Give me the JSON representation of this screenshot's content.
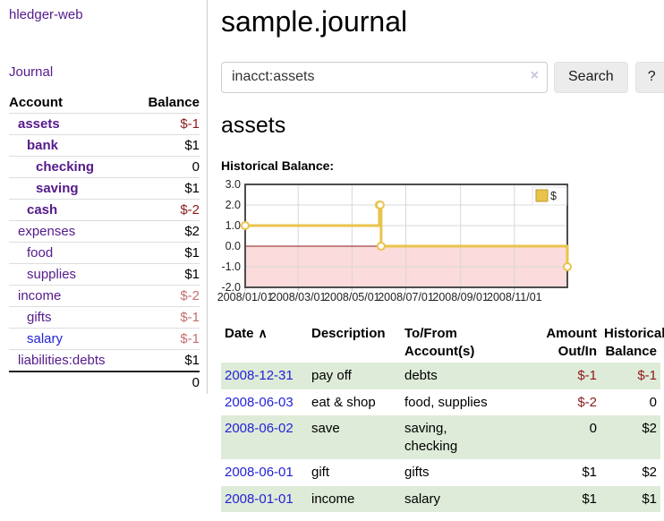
{
  "sidebar": {
    "app_title": "hledger-web",
    "journal_label": "Journal",
    "accounts_table": {
      "account_header": "Account",
      "balance_header": "Balance",
      "rows": [
        {
          "name": "assets",
          "balance": "$-1",
          "depth": 1,
          "bold": true,
          "balance_style": "negative"
        },
        {
          "name": "bank",
          "balance": "$1",
          "depth": 2,
          "bold": true,
          "balance_style": "normal"
        },
        {
          "name": "checking",
          "balance": "0",
          "depth": 3,
          "bold": true,
          "balance_style": "normal"
        },
        {
          "name": "saving",
          "balance": "$1",
          "depth": 3,
          "bold": true,
          "balance_style": "normal"
        },
        {
          "name": "cash",
          "balance": "$-2",
          "depth": 2,
          "bold": true,
          "balance_style": "negative"
        },
        {
          "name": "expenses",
          "balance": "$2",
          "depth": 1,
          "bold": false,
          "balance_style": "normal"
        },
        {
          "name": "food",
          "balance": "$1",
          "depth": 2,
          "bold": false,
          "balance_style": "normal"
        },
        {
          "name": "supplies",
          "balance": "$1",
          "depth": 2,
          "bold": false,
          "balance_style": "normal"
        },
        {
          "name": "income",
          "balance": "$-2",
          "depth": 1,
          "bold": false,
          "balance_style": "negative-dim"
        },
        {
          "name": "gifts",
          "balance": "$-1",
          "depth": 2,
          "bold": false,
          "balance_style": "negative-dim"
        },
        {
          "name": "salary",
          "balance": "$-1",
          "depth": 2,
          "bold": false,
          "balance_style": "negative-dim",
          "link_color": "blue"
        },
        {
          "name": "liabilities:debts",
          "balance": "$1",
          "depth": 1,
          "bold": false,
          "balance_style": "normal"
        }
      ],
      "total": "0"
    }
  },
  "header": {
    "title": "sample.journal"
  },
  "search": {
    "query": "inacct:assets",
    "clear_icon": "×",
    "search_button": "Search",
    "help_button": "?"
  },
  "account_page": {
    "heading": "assets",
    "chart_label": "Historical Balance:"
  },
  "chart_data": {
    "type": "line",
    "step": true,
    "title": "Historical Balance",
    "legend": [
      {
        "label": "$",
        "color": "#e9c34c"
      }
    ],
    "legend_position": "top-right",
    "series": [
      {
        "name": "$",
        "points": [
          [
            "2008-01-01",
            1.0
          ],
          [
            "2008-06-01",
            2.0
          ],
          [
            "2008-06-02",
            2.0
          ],
          [
            "2008-06-03",
            0.0
          ],
          [
            "2008-12-31",
            -1.0
          ]
        ]
      }
    ],
    "ylim": [
      -2.0,
      3.0
    ],
    "yticks": [
      "3.0",
      "2.0",
      "1.0",
      "0.0",
      "-1.0",
      "-2.0"
    ],
    "ytick_values": [
      3.0,
      2.0,
      1.0,
      0.0,
      -1.0,
      -2.0
    ],
    "xticks": [
      "2008/01/01",
      "2008/03/01",
      "2008/05/01",
      "2008/07/01",
      "2008/09/01",
      "2008/11/01"
    ],
    "xtick_day_index": [
      0,
      60,
      121,
      182,
      244,
      305
    ],
    "x_range_days": 365,
    "grid": true,
    "line_color": "#e9c34c",
    "grid_color": "#d8d8d8",
    "border_color": "#4d4d4d",
    "negative_region_color": "#fbdbdb",
    "zero_line_color": "#8b1a1a"
  },
  "register_table": {
    "headers": {
      "date": "Date",
      "date_sort_icon": "∧",
      "description": "Description",
      "to_from": "To/From\nAccount(s)",
      "amount": "Amount\nOut/In",
      "balance": "Historical\nBalance"
    },
    "rows": [
      {
        "date": "2008-12-31",
        "description": "pay off",
        "to_from": "debts",
        "amount": "$-1",
        "amount_neg": true,
        "balance": "$-1",
        "balance_neg": true,
        "shaded": true
      },
      {
        "date": "2008-06-03",
        "description": "eat & shop",
        "to_from": "food, supplies",
        "amount": "$-2",
        "amount_neg": true,
        "balance": "0",
        "balance_neg": false,
        "shaded": false
      },
      {
        "date": "2008-06-02",
        "description": "save",
        "to_from": "saving,\nchecking",
        "amount": "0",
        "amount_neg": false,
        "balance": "$2",
        "balance_neg": false,
        "shaded": true
      },
      {
        "date": "2008-06-01",
        "description": "gift",
        "to_from": "gifts",
        "amount": "$1",
        "amount_neg": false,
        "balance": "$2",
        "balance_neg": false,
        "shaded": false
      },
      {
        "date": "2008-01-01",
        "description": "income",
        "to_from": "salary",
        "amount": "$1",
        "amount_neg": false,
        "balance": "$1",
        "balance_neg": false,
        "shaded": true
      }
    ]
  },
  "colors": {
    "link_purple": "#551a8b",
    "link_blue": "#2323d6",
    "negative_red": "#8c1a1a",
    "negative_dim": "#c56f6f",
    "row_green": "#deebd8",
    "chart_gold": "#e9c34c"
  }
}
